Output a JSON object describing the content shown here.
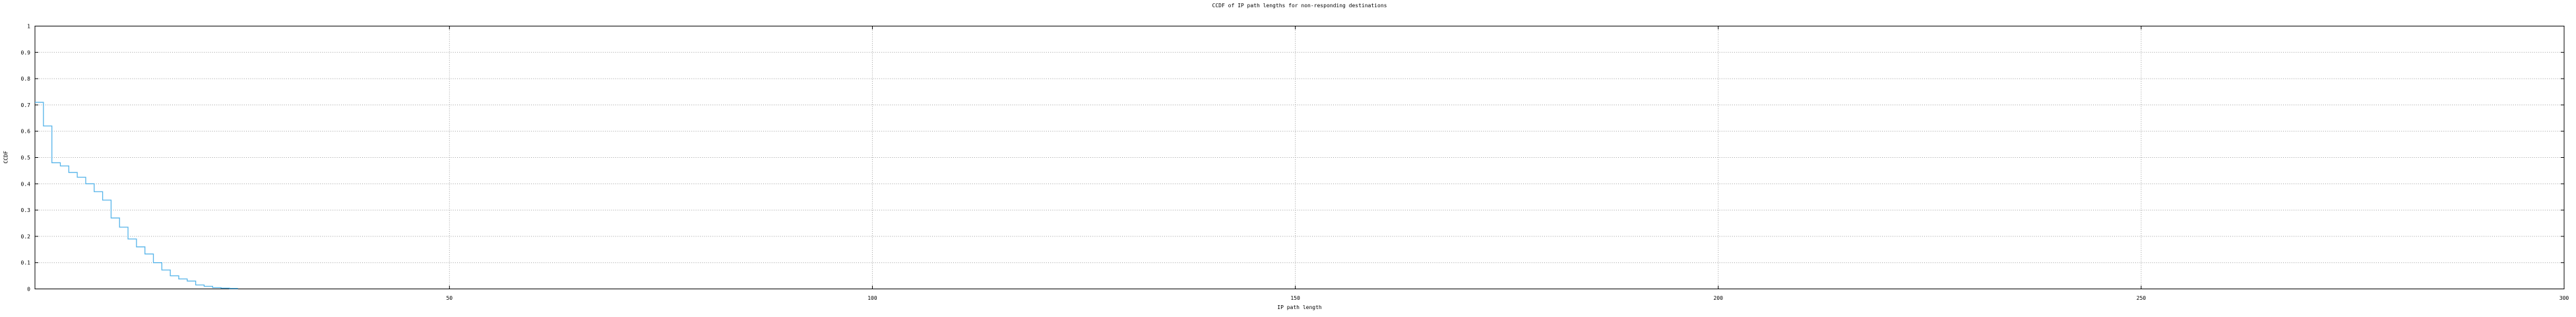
{
  "window": {
    "background": "#ffffff"
  },
  "chart_data": {
    "type": "line",
    "style": "steps-post",
    "title": "CCDF of IP path lengths for non-responding destinations",
    "xlabel": "IP path length",
    "ylabel": "CCDF",
    "x": [
      1,
      2,
      3,
      4,
      5,
      6,
      7,
      8,
      9,
      10,
      11,
      12,
      13,
      14,
      15,
      16,
      17,
      18,
      19,
      20,
      21,
      22,
      23,
      24
    ],
    "y": [
      0.71,
      0.62,
      0.48,
      0.468,
      0.443,
      0.425,
      0.4,
      0.37,
      0.338,
      0.27,
      0.235,
      0.19,
      0.16,
      0.133,
      0.1,
      0.072,
      0.05,
      0.038,
      0.03,
      0.015,
      0.01,
      0.005,
      0.003,
      0.002
    ],
    "x_end": 25,
    "xlim": [
      1,
      300
    ],
    "ylim": [
      0,
      1
    ],
    "xticks": [
      50,
      100,
      150,
      200,
      250,
      300
    ],
    "xtick_labels": [
      "50",
      "100",
      "150",
      "200",
      "250",
      "300"
    ],
    "yticks": [
      0,
      0.1,
      0.2,
      0.3,
      0.4,
      0.5,
      0.6,
      0.7,
      0.8,
      0.9,
      1
    ],
    "ytick_labels": [
      "0",
      "0.1",
      "0.2",
      "0.3",
      "0.4",
      "0.5",
      "0.6",
      "0.7",
      "0.8",
      "0.9",
      "1"
    ],
    "grid": true,
    "legend": "none",
    "line_color": "#56b4e9",
    "grid_color": "#9c9c9c",
    "axis_color": "#000000",
    "text_color": "#000000"
  }
}
